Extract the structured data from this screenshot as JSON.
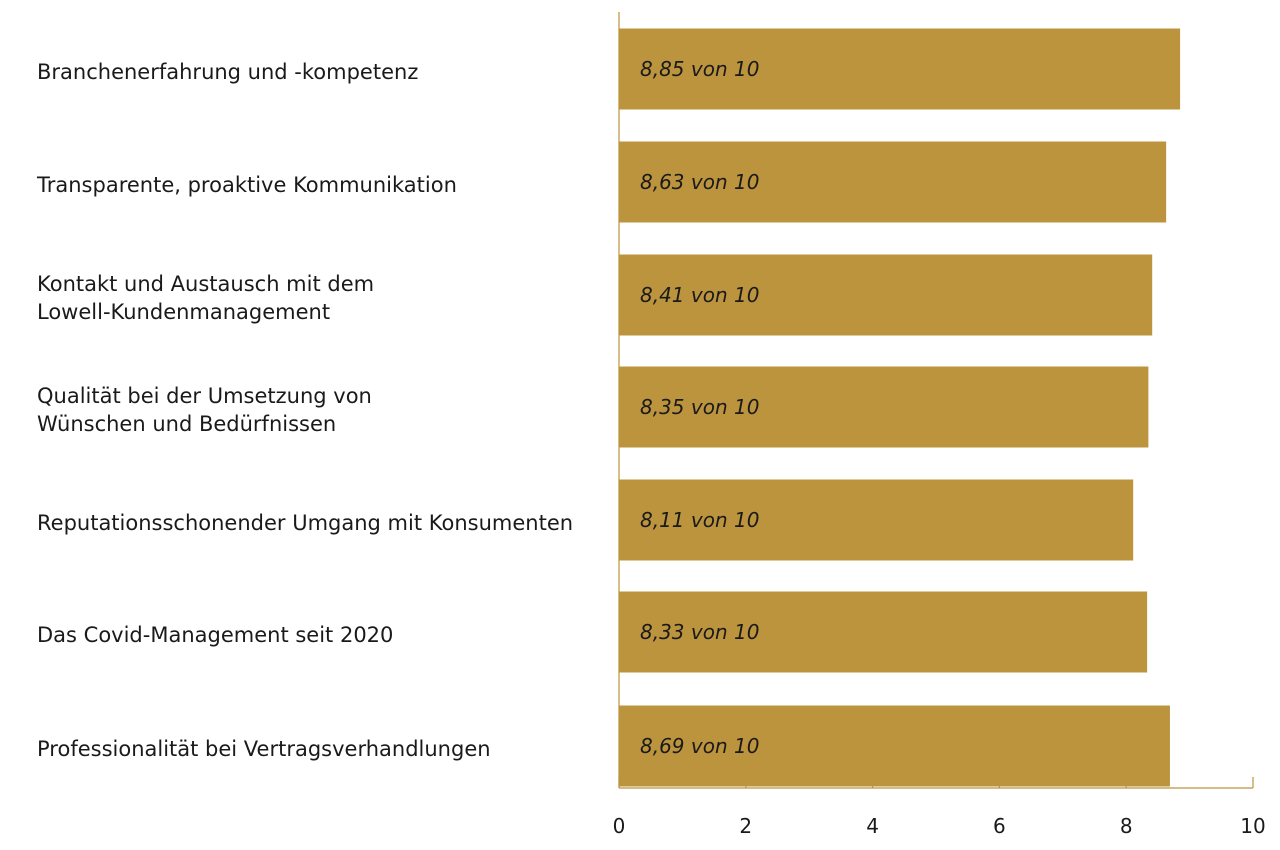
{
  "chart_data": {
    "type": "bar",
    "orientation": "horizontal",
    "categories": [
      "Branchenerfahrung und -kompetenz",
      "Transparente, proaktive Kommunikation",
      "Kontakt und Austausch mit dem\nLowell-Kundenmanagement",
      "Qualität bei der Umsetzung von\nWünschen und Bedürfnissen",
      "Reputationsschonender Umgang mit Konsumenten",
      "Das Covid-Management seit 2020",
      "Professionalität bei Vertragsverhandlungen"
    ],
    "values": [
      8.85,
      8.63,
      8.41,
      8.35,
      8.11,
      8.33,
      8.69
    ],
    "data_labels": [
      "8,85 von 10",
      "8,63 von 10",
      "8,41 von 10",
      "8,35 von 10",
      "8,11 von 10",
      "8,33 von 10",
      "8,69 von 10"
    ],
    "xlim": [
      0,
      10
    ],
    "xticks": [
      0,
      2,
      4,
      6,
      8,
      10
    ],
    "xtick_labels": [
      "0",
      "2",
      "4",
      "6",
      "8",
      "10"
    ],
    "title": "",
    "xlabel": "",
    "ylabel": "",
    "grid": false,
    "bar_color": "#BC943D",
    "axis_color": "#BC943D"
  }
}
